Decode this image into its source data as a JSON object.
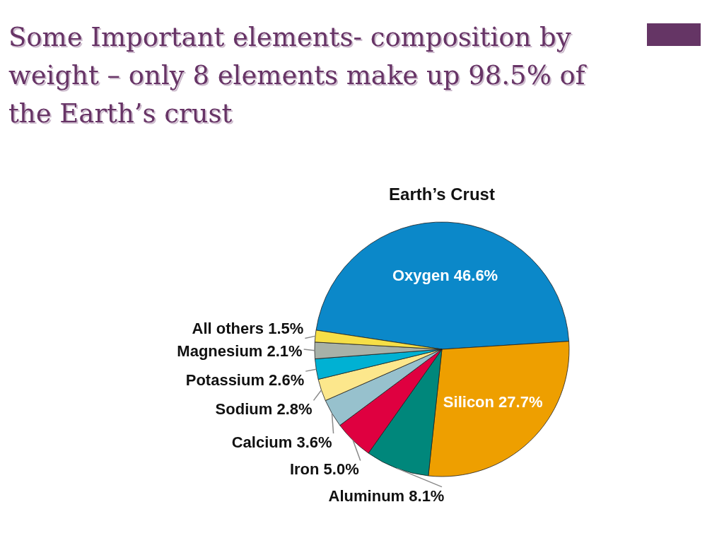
{
  "chart_data": {
    "type": "pie",
    "title": "Some Important elements- composition by weight – only 8 elements make up 98.5% of the Earth’s crust",
    "subtitle": "Earth’s Crust",
    "categories": [
      "Oxygen",
      "Silicon",
      "Aluminum",
      "Iron",
      "Calcium",
      "Sodium",
      "Potassium",
      "Magnesium",
      "All others"
    ],
    "values": [
      46.6,
      27.7,
      8.1,
      5.0,
      3.6,
      2.8,
      2.6,
      2.1,
      1.5
    ],
    "colors": [
      "#0b88c9",
      "#ee9f00",
      "#00877b",
      "#df0040",
      "#97c1cd",
      "#fce78c",
      "#00b1d3",
      "#a8b1a8",
      "#f6df47"
    ],
    "value_labels": [
      "46.6%",
      "27.7%",
      "8.1%",
      "5.0%",
      "3.6%",
      "2.8%",
      "2.6%",
      "2.1%",
      "1.5%"
    ]
  }
}
